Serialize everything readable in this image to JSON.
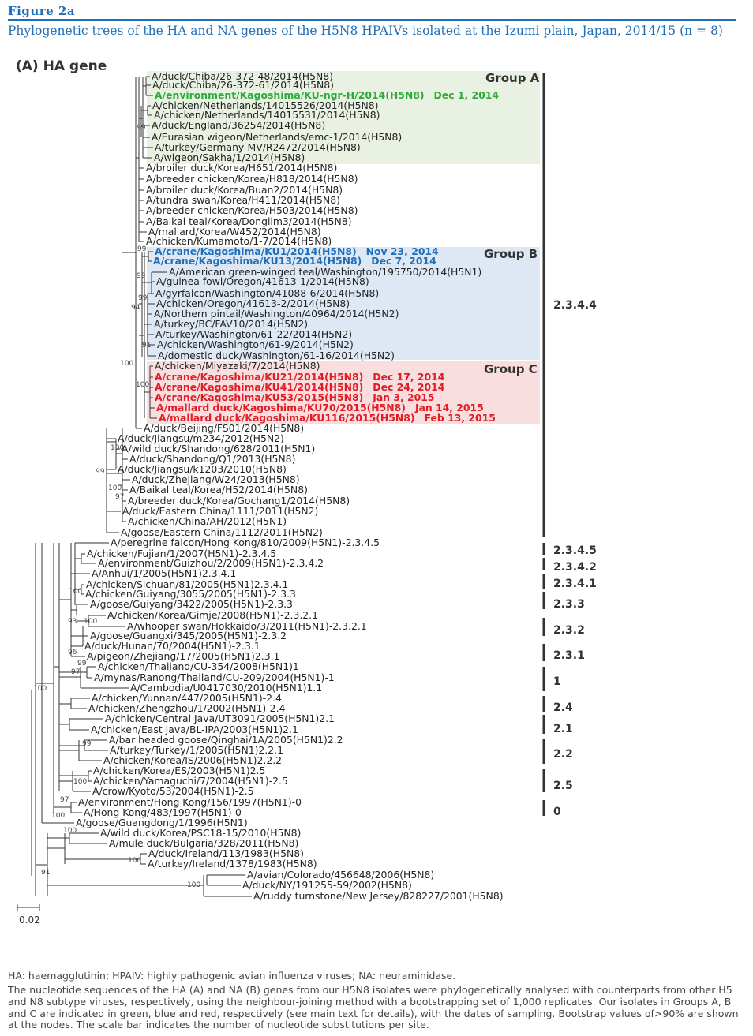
{
  "figure_label": "Figure 2a",
  "title": "Phylogenetic trees of the HA and NA genes of the H5N8 HPAIVs isolated at the Izumi plain, Japan, 2014/15 (n = 8)",
  "panel_label": "(A) HA gene",
  "colors": {
    "groupA": "#2bab3a",
    "groupB": "#1f6eb8",
    "groupC": "#e01c24",
    "bgA": "#e9f1e2",
    "bgB": "#dde8f4",
    "bgC": "#f8dede",
    "heading": "#1f6eb8"
  },
  "tips": [
    {
      "label": "A/duck/Chiba/26-372-48/2014(H5N8)"
    },
    {
      "label": "A/duck/Chiba/26-372-61/2014(H5N8)"
    },
    {
      "label": "A/environment/Kagoshima/KU-ngr-H/2014(H5N8)",
      "date": "Dec 1, 2014",
      "group": "A"
    },
    {
      "label": "A/chicken/Netherlands/14015526/2014(H5N8)"
    },
    {
      "label": "A/chicken/Netherlands/14015531/2014(H5N8)"
    },
    {
      "label": "A/duck/England/36254/2014(H5N8)"
    },
    {
      "label": "A/Eurasian wigeon/Netherlands/emc-1/2014(H5N8)"
    },
    {
      "label": "A/turkey/Germany-MV/R2472/2014(H5N8)"
    },
    {
      "label": "A/wigeon/Sakha/1/2014(H5N8)"
    },
    {
      "label": "A/broiler duck/Korea/H651/2014(H5N8)"
    },
    {
      "label": "A/breeder chicken/Korea/H818/2014(H5N8)"
    },
    {
      "label": "A/broiler duck/Korea/Buan2/2014(H5N8)"
    },
    {
      "label": "A/tundra swan/Korea/H411/2014(H5N8)"
    },
    {
      "label": "A/breeder chicken/Korea/H503/2014(H5N8)"
    },
    {
      "label": "A/Baikal teal/Korea/Donglim3/2014(H5N8)"
    },
    {
      "label": "A/mallard/Korea/W452/2014(H5N8)"
    },
    {
      "label": "A/chicken/Kumamoto/1-7/2014(H5N8)"
    },
    {
      "label": "A/crane/Kagoshima/KU1/2014(H5N8)",
      "date": "Nov 23, 2014",
      "group": "B"
    },
    {
      "label": "A/crane/Kagoshima/KU13/2014(H5N8)",
      "date": "Dec 7, 2014",
      "group": "B"
    },
    {
      "label": "A/American green-winged teal/Washington/195750/2014(H5N1)"
    },
    {
      "label": "A/guinea fowl/Oregon/41613-1/2014(H5N8)"
    },
    {
      "label": "A/gyrfalcon/Washington/41088-6/2014(H5N8)"
    },
    {
      "label": "A/chicken/Oregon/41613-2/2014(H5N8)"
    },
    {
      "label": "A/Northern pintail/Washington/40964/2014(H5N2)"
    },
    {
      "label": "A/turkey/BC/FAV10/2014(H5N2)"
    },
    {
      "label": "A/turkey/Washington/61-22/2014(H5N2)"
    },
    {
      "label": "A/chicken/Washington/61-9/2014(H5N2)"
    },
    {
      "label": "A/domestic duck/Washington/61-16/2014(H5N2)"
    },
    {
      "label": "A/chicken/Miyazaki/7/2014(H5N8)"
    },
    {
      "label": "A/crane/Kagoshima/KU21/2014(H5N8)",
      "date": "Dec 17, 2014",
      "group": "C"
    },
    {
      "label": "A/crane/Kagoshima/KU41/2014(H5N8)",
      "date": "Dec 24, 2014",
      "group": "C"
    },
    {
      "label": "A/crane/Kagoshima/KU53/2015(H5N8)",
      "date": "Jan 3, 2015",
      "group": "C"
    },
    {
      "label": "A/mallard duck/Kagoshima/KU70/2015(H5N8)",
      "date": "Jan 14, 2015",
      "group": "C"
    },
    {
      "label": "A/mallard duck/Kagoshima/KU116/2015(H5N8)",
      "date": "Feb 13, 2015",
      "group": "C"
    },
    {
      "label": "A/duck/Beijing/FS01/2014(H5N8)"
    },
    {
      "label": "A/duck/Jiangsu/m234/2012(H5N2)"
    },
    {
      "label": "A/wild duck/Shandong/628/2011(H5N1)"
    },
    {
      "label": "A/duck/Shandong/Q1/2013(H5N8)"
    },
    {
      "label": "A/duck/Jiangsu/k1203/2010(H5N8)"
    },
    {
      "label": "A/duck/Zhejiang/W24/2013(H5N8)"
    },
    {
      "label": "A/Baikal teal/Korea/H52/2014(H5N8)"
    },
    {
      "label": "A/breeder duck/Korea/Gochang1/2014(H5N8)"
    },
    {
      "label": "A/duck/Eastern China/1111/2011(H5N2)"
    },
    {
      "label": "A/chicken/China/AH/2012(H5N1)"
    },
    {
      "label": "A/goose/Eastern China/1112/2011(H5N2)"
    },
    {
      "label": "A/peregrine falcon/Hong Kong/810/2009(H5N1)-2.3.4.5"
    },
    {
      "label": "A/chicken/Fujian/1/2007(H5N1)-2.3.4.5"
    },
    {
      "label": "A/environment/Guizhou/2/2009(H5N1)-2.3.4.2"
    },
    {
      "label": "A/Anhui/1/2005(H5N1)2.3.4.1"
    },
    {
      "label": "A/chicken/Sichuan/81/2005(H5N1)2.3.4.1"
    },
    {
      "label": "A/chicken/Guiyang/3055/2005(H5N1)-2.3.3"
    },
    {
      "label": "A/goose/Guiyang/3422/2005(H5N1)-2.3.3"
    },
    {
      "label": "A/chicken/Korea/Gimje/2008(H5N1)-2.3.2.1"
    },
    {
      "label": "A/whooper swan/Hokkaido/3/2011(H5N1)-2.3.2.1"
    },
    {
      "label": "A/goose/Guangxi/345/2005(H5N1)-2.3.2"
    },
    {
      "label": "A/duck/Hunan/70/2004(H5N1)-2.3.1"
    },
    {
      "label": "A/pigeon/Zhejiang/17/2005(H5N1)2.3.1"
    },
    {
      "label": "A/chicken/Thailand/CU-354/2008(H5N1)1"
    },
    {
      "label": "A/mynas/Ranong/Thailand/CU-209/2004(H5N1)-1"
    },
    {
      "label": "A/Cambodia/U0417030/2010(H5N1)1.1"
    },
    {
      "label": "A/chicken/Yunnan/447/2005(H5N1)-2.4"
    },
    {
      "label": "A/chicken/Zhengzhou/1/2002(H5N1)-2.4"
    },
    {
      "label": "A/chicken/Central Java/UT3091/2005(H5N1)2.1"
    },
    {
      "label": "A/chicken/East Java/BL-IPA/2003(H5N1)2.1"
    },
    {
      "label": "A/bar headed goose/Qinghai/1A/2005(H5N1)2.2"
    },
    {
      "label": "A/turkey/Turkey/1/2005(H5N1)2.2.1"
    },
    {
      "label": "A/chicken/Korea/IS/2006(H5N1)2.2.2"
    },
    {
      "label": "A/chicken/Korea/ES/2003(H5N1)2.5"
    },
    {
      "label": "A/chicken/Yamaguchi/7/2004(H5N1)-2.5"
    },
    {
      "label": "A/crow/Kyoto/53/2004(H5N1)-2.5"
    },
    {
      "label": "A/environment/Hong Kong/156/1997(H5N1)-0"
    },
    {
      "label": "A/Hong Kong/483/1997(H5N1)-0"
    },
    {
      "label": "A/goose/Guangdong/1/1996(H5N1)"
    },
    {
      "label": "A/wild duck/Korea/PSC18-15/2010(H5N8)"
    },
    {
      "label": "A/mule duck/Bulgaria/328/2011(H5N8)"
    },
    {
      "label": "A/duck/Ireland/113/1983(H5N8)"
    },
    {
      "label": "A/turkey/Ireland/1378/1983(H5N8)"
    },
    {
      "label": "A/avian/Colorado/456648/2006(H5N8)"
    },
    {
      "label": "A/duck/NY/191255-59/2002(H5N8)"
    },
    {
      "label": "A/ruddy turnstone/New Jersey/828227/2001(H5N8)"
    }
  ],
  "groups": [
    {
      "label": "Group A"
    },
    {
      "label": "Group B"
    },
    {
      "label": "Group C"
    }
  ],
  "clades": [
    {
      "label": "2.3.4.4"
    },
    {
      "label": "2.3.4.5"
    },
    {
      "label": "2.3.4.2"
    },
    {
      "label": "2.3.4.1"
    },
    {
      "label": "2.3.3"
    },
    {
      "label": "2.3.2"
    },
    {
      "label": "2.3.1"
    },
    {
      "label": "1"
    },
    {
      "label": "2.4"
    },
    {
      "label": "2.1"
    },
    {
      "label": "2.2"
    },
    {
      "label": "2.5"
    },
    {
      "label": "0"
    }
  ],
  "bootstrap": [
    "99",
    "99",
    "94",
    "99",
    "99",
    "91",
    "100",
    "100",
    "100",
    "99",
    "100",
    "97",
    "100",
    "93",
    "100",
    "96",
    "99",
    "97",
    "100",
    "99",
    "100",
    "97",
    "100",
    "100",
    "100",
    "91",
    "100"
  ],
  "scale_label": "0.02",
  "abbreviations": "HA: haemagglutinin; HPAIV: highly pathogenic avian influenza viruses; NA: neuraminidase.",
  "caption": "The nucleotide sequences of the HA (A) and NA (B) genes from our H5N8 isolates were phylogenetically analysed with counterparts from other H5 and N8 subtype viruses, respectively, using the neighbour-joining method with a bootstrapping set of 1,000 replicates. Our isolates in Groups A, B and C are indicated in green, blue and red, respectively (see main text for details), with the dates of sampling. Bootstrap values of>90% are shown at the nodes. The scale bar indicates the number of nucleotide substitutions per site."
}
